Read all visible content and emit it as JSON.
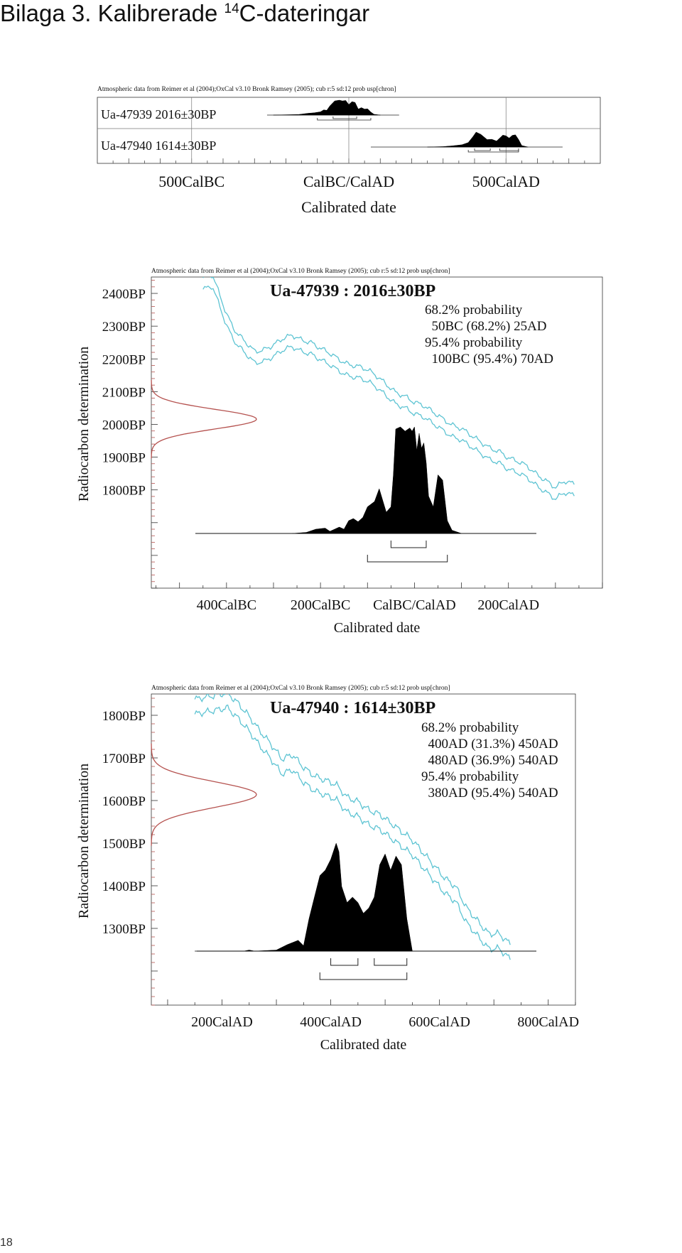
{
  "page": {
    "title_prefix": "Bilaga 3.  Kalibrerade ",
    "title_sup": "14",
    "title_suffix": "C-dateringar",
    "page_number": "18"
  },
  "colors": {
    "curve": "#5ec4d3",
    "radiocarbon": "#b5524f",
    "label_blue": "#3f5e9a",
    "fill": "#000000"
  },
  "chart_data": [
    {
      "type": "area",
      "subtype": "multiplot",
      "header": "Atmospheric data from Reimer et al (2004);OxCal v3.10 Bronk Ramsey (2005); cub r:5 sd:12 prob usp[chron]",
      "xlabel": "Calibrated date",
      "xlim": [
        -800,
        800
      ],
      "xticks": [
        {
          "value": -500,
          "label": "500CalBC"
        },
        {
          "value": 0,
          "label": "CalBC/CalAD"
        },
        {
          "value": 500,
          "label": "500CalAD"
        }
      ],
      "series": [
        {
          "label": "Ua-47939  2016±30BP",
          "range_line": [
            -260,
            160
          ],
          "x": [
            -240,
            -200,
            -160,
            -130,
            -110,
            -90,
            -80,
            -70,
            -60,
            -45,
            -30,
            -20,
            -10,
            0,
            10,
            20,
            30,
            40,
            50,
            60,
            70,
            80,
            100
          ],
          "y": [
            0,
            0.02,
            0.04,
            0.12,
            0.15,
            0.22,
            0.35,
            0.32,
            0.62,
            0.95,
            1.0,
            0.95,
            0.98,
            0.7,
            0.9,
            0.85,
            0.4,
            0.5,
            0.4,
            0.42,
            0.2,
            0.05,
            0
          ],
          "bracket_68": [
            [
              -50,
              25
            ]
          ],
          "bracket_95": [
            [
              -100,
              70
            ]
          ]
        },
        {
          "label": "Ua-47940  1614±30BP",
          "range_line": [
            70,
            680
          ],
          "x": [
            250,
            300,
            330,
            360,
            380,
            395,
            405,
            420,
            440,
            455,
            470,
            480,
            490,
            500,
            510,
            520,
            530,
            540,
            550,
            570
          ],
          "y": [
            0,
            0.03,
            0.08,
            0.15,
            0.3,
            0.7,
            1.0,
            0.85,
            0.5,
            0.52,
            0.4,
            0.6,
            0.8,
            0.75,
            0.6,
            0.78,
            0.82,
            0.5,
            0.1,
            0
          ],
          "bracket_68": [
            [
              400,
              450
            ],
            [
              480,
              540
            ]
          ],
          "bracket_95": [
            [
              380,
              540
            ]
          ]
        }
      ]
    },
    {
      "type": "area",
      "header": "Atmospheric data from Reimer et al (2004);OxCal v3.10 Bronk Ramsey (2005); cub r:5 sd:12 prob usp[chron]",
      "title": "Ua-47939 : 2016±30BP",
      "annotations": [
        "68.2% probability",
        "  50BC (68.2%) 25AD",
        "95.4% probability",
        "  100BC (95.4%) 70AD"
      ],
      "xlabel": "Calibrated date",
      "ylabel": "Radiocarbon determination",
      "xlim": [
        -560,
        400
      ],
      "ylim": [
        1500,
        2450
      ],
      "xticks": [
        {
          "value": -400,
          "label": "400CalBC"
        },
        {
          "value": -200,
          "label": "200CalBC"
        },
        {
          "value": 0,
          "label": "CalBC/CalAD"
        },
        {
          "value": 200,
          "label": "200CalAD"
        }
      ],
      "yticks": [
        {
          "value": 2400,
          "label": "2400BP"
        },
        {
          "value": 2300,
          "label": "2300BP"
        },
        {
          "value": 2200,
          "label": "2200BP"
        },
        {
          "value": 2100,
          "label": "2100BP"
        },
        {
          "value": 2000,
          "label": "2000BP"
        },
        {
          "value": 1900,
          "label": "1900BP"
        },
        {
          "value": 1800,
          "label": "1800BP"
        }
      ],
      "radiocarbon": {
        "mean": 2016,
        "sd": 30
      },
      "calibration_curve": {
        "x": [
          -450,
          -430,
          -410,
          -400,
          -390,
          -380,
          -360,
          -340,
          -320,
          -300,
          -280,
          -260,
          -240,
          -220,
          -200,
          -180,
          -160,
          -140,
          -120,
          -100,
          -80,
          -60,
          -40,
          -20,
          0,
          20,
          40,
          60,
          80,
          100,
          120,
          140,
          160,
          180,
          200,
          220,
          240,
          260,
          280,
          300,
          320,
          340
        ],
        "y": [
          2430,
          2440,
          2360,
          2320,
          2290,
          2265,
          2235,
          2205,
          2210,
          2225,
          2245,
          2255,
          2240,
          2232,
          2215,
          2200,
          2180,
          2165,
          2160,
          2150,
          2130,
          2105,
          2080,
          2068,
          2050,
          2040,
          2020,
          2000,
          1980,
          1970,
          1950,
          1930,
          1910,
          1900,
          1880,
          1870,
          1855,
          1830,
          1810,
          1790,
          1810,
          1800
        ],
        "width": 35
      },
      "distribution": {
        "x": [
          -260,
          -230,
          -210,
          -190,
          -180,
          -160,
          -150,
          -140,
          -130,
          -120,
          -110,
          -100,
          -85,
          -75,
          -60,
          -50,
          -45,
          -40,
          -30,
          -20,
          -10,
          -5,
          0,
          5,
          10,
          15,
          20,
          25,
          30,
          40,
          50,
          60,
          70,
          80,
          100
        ],
        "y": [
          0,
          0.01,
          0.04,
          0.05,
          0.02,
          0.06,
          0.04,
          0.12,
          0.14,
          0.11,
          0.15,
          0.25,
          0.3,
          0.42,
          0.2,
          0.25,
          0.55,
          0.98,
          1.0,
          0.96,
          0.99,
          0.96,
          1.0,
          0.78,
          0.94,
          0.8,
          0.85,
          0.66,
          0.35,
          0.25,
          0.55,
          0.5,
          0.12,
          0.03,
          0
        ]
      },
      "bracket_68": [
        [
          -50,
          25
        ]
      ],
      "bracket_95": [
        [
          -100,
          70
        ]
      ]
    },
    {
      "type": "area",
      "header": "Atmospheric data from Reimer et al (2004);OxCal v3.10 Bronk Ramsey (2005); cub r:5 sd:12 prob usp[chron]",
      "title": "Ua-47940 : 1614±30BP",
      "annotations": [
        "68.2% probability",
        "  400AD (31.3%) 450AD",
        "  480AD (36.9%) 540AD",
        "95.4% probability",
        "  380AD (95.4%) 540AD"
      ],
      "xlabel": "Calibrated date",
      "ylabel": "Radiocarbon determination",
      "xlim": [
        70,
        850
      ],
      "ylim": [
        1120,
        1850
      ],
      "xticks": [
        {
          "value": 200,
          "label": "200CalAD"
        },
        {
          "value": 400,
          "label": "400CalAD"
        },
        {
          "value": 600,
          "label": "600CalAD"
        },
        {
          "value": 800,
          "label": "800CalAD"
        }
      ],
      "yticks": [
        {
          "value": 1800,
          "label": "1800BP"
        },
        {
          "value": 1700,
          "label": "1700BP"
        },
        {
          "value": 1600,
          "label": "1600BP"
        },
        {
          "value": 1500,
          "label": "1500BP"
        },
        {
          "value": 1400,
          "label": "1400BP"
        },
        {
          "value": 1300,
          "label": "1300BP"
        }
      ],
      "radiocarbon": {
        "mean": 1614,
        "sd": 30
      },
      "calibration_curve": {
        "x": [
          150,
          170,
          190,
          210,
          230,
          250,
          270,
          290,
          310,
          330,
          350,
          370,
          390,
          410,
          430,
          450,
          470,
          490,
          510,
          530,
          550,
          570,
          590,
          610,
          630,
          650,
          670,
          690,
          710,
          730
        ],
        "y": [
          1820,
          1825,
          1830,
          1835,
          1810,
          1780,
          1745,
          1715,
          1680,
          1690,
          1660,
          1640,
          1630,
          1620,
          1590,
          1580,
          1560,
          1550,
          1530,
          1510,
          1490,
          1460,
          1430,
          1400,
          1380,
          1330,
          1300,
          1270,
          1270,
          1245
        ],
        "width": 35
      },
      "distribution": {
        "x": [
          150,
          240,
          250,
          260,
          300,
          320,
          340,
          350,
          360,
          370,
          380,
          390,
          400,
          410,
          415,
          420,
          430,
          440,
          450,
          460,
          470,
          480,
          490,
          500,
          510,
          520,
          530,
          540,
          550
        ],
        "y": [
          0,
          0,
          0.01,
          0,
          0.01,
          0.06,
          0.1,
          0.05,
          0.3,
          0.5,
          0.7,
          0.75,
          0.85,
          1.0,
          0.92,
          0.6,
          0.45,
          0.5,
          0.45,
          0.35,
          0.4,
          0.5,
          0.8,
          0.9,
          0.75,
          0.88,
          0.8,
          0.3,
          0
        ]
      },
      "bracket_68": [
        [
          400,
          450
        ],
        [
          480,
          540
        ]
      ],
      "bracket_95": [
        [
          380,
          540
        ]
      ]
    }
  ]
}
